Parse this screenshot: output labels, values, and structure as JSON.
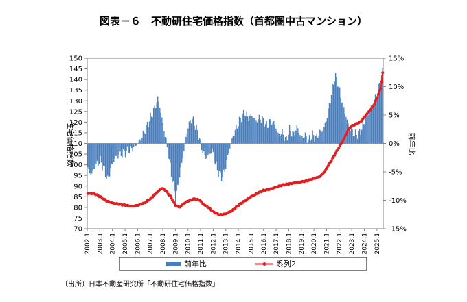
{
  "chart_data": {
    "type": "bar+line",
    "title": "図表－６　不動研住宅価格指数（首都圏中古マンション）",
    "ylabel_left": "住宅価格指数",
    "ylabel_right": "前年比",
    "left_axis": {
      "min": 70,
      "max": 150,
      "step": 5,
      "ticks": [
        "70",
        "75",
        "80",
        "85",
        "90",
        "95",
        "100",
        "105",
        "110",
        "115",
        "120",
        "125",
        "130",
        "135",
        "140",
        "145",
        "150"
      ]
    },
    "right_axis": {
      "min": -15,
      "max": 15,
      "step": 5,
      "ticks": [
        "-15%",
        "-10%",
        "-5%",
        "0%",
        "5%",
        "10%",
        "15%"
      ]
    },
    "x_start": "2002.1",
    "x_end": "2025.6",
    "x_ticks": [
      "2002.1",
      "2003.1",
      "2004.1",
      "2005.1",
      "2006.1",
      "2007.1",
      "2008.1",
      "2009.1",
      "2010.1",
      "2011.1",
      "2012.1",
      "2013.1",
      "2014.1",
      "2015.1",
      "2016.1",
      "2017.1",
      "2018.1",
      "2019.1",
      "2020.1",
      "2021.1",
      "2022.1",
      "2023.1",
      "2024.1",
      "2025.1"
    ],
    "series": [
      {
        "name": "前年比",
        "type": "bar",
        "axis": "right",
        "color": "#4a7ebb",
        "unit": "%",
        "anchors": [
          [
            2002.0,
            -4.5
          ],
          [
            2002.3,
            -5.5
          ],
          [
            2002.6,
            -4.0
          ],
          [
            2003.0,
            -3.0
          ],
          [
            2003.3,
            -4.5
          ],
          [
            2003.6,
            -6.5
          ],
          [
            2003.9,
            -4.0
          ],
          [
            2004.2,
            -2.5
          ],
          [
            2004.6,
            -2.0
          ],
          [
            2005.0,
            -1.5
          ],
          [
            2005.5,
            -1.0
          ],
          [
            2006.0,
            0.0
          ],
          [
            2006.3,
            1.0
          ],
          [
            2006.6,
            2.5
          ],
          [
            2007.0,
            4.5
          ],
          [
            2007.3,
            6.0
          ],
          [
            2007.6,
            8.0
          ],
          [
            2007.75,
            6.5
          ],
          [
            2007.95,
            4.0
          ],
          [
            2008.2,
            1.0
          ],
          [
            2008.5,
            -3.0
          ],
          [
            2008.8,
            -7.0
          ],
          [
            2009.0,
            -9.5
          ],
          [
            2009.2,
            -7.5
          ],
          [
            2009.5,
            -3.5
          ],
          [
            2009.8,
            0.5
          ],
          [
            2010.0,
            3.0
          ],
          [
            2010.3,
            4.5
          ],
          [
            2010.6,
            3.0
          ],
          [
            2010.9,
            1.0
          ],
          [
            2011.1,
            -1.0
          ],
          [
            2011.4,
            -2.5
          ],
          [
            2011.7,
            -2.0
          ],
          [
            2011.9,
            -1.0
          ],
          [
            2012.1,
            -3.0
          ],
          [
            2012.4,
            -5.0
          ],
          [
            2012.7,
            -6.0
          ],
          [
            2012.9,
            -5.0
          ],
          [
            2013.1,
            -3.0
          ],
          [
            2013.3,
            -1.0
          ],
          [
            2013.6,
            1.5
          ],
          [
            2013.9,
            3.0
          ],
          [
            2014.2,
            4.5
          ],
          [
            2014.5,
            5.5
          ],
          [
            2014.8,
            4.5
          ],
          [
            2015.1,
            5.0
          ],
          [
            2015.4,
            4.0
          ],
          [
            2015.7,
            4.5
          ],
          [
            2016.0,
            4.0
          ],
          [
            2016.3,
            3.0
          ],
          [
            2016.6,
            4.0
          ],
          [
            2016.9,
            3.5
          ],
          [
            2017.2,
            1.5
          ],
          [
            2017.5,
            2.0
          ],
          [
            2017.8,
            0.5
          ],
          [
            2018.1,
            2.5
          ],
          [
            2018.4,
            1.5
          ],
          [
            2018.7,
            3.0
          ],
          [
            2019.0,
            1.0
          ],
          [
            2019.3,
            1.5
          ],
          [
            2019.6,
            0.5
          ],
          [
            2019.9,
            1.5
          ],
          [
            2020.2,
            1.0
          ],
          [
            2020.5,
            2.0
          ],
          [
            2020.8,
            2.5
          ],
          [
            2021.1,
            5.0
          ],
          [
            2021.4,
            8.5
          ],
          [
            2021.7,
            12.0
          ],
          [
            2021.9,
            11.0
          ],
          [
            2022.2,
            8.0
          ],
          [
            2022.5,
            5.5
          ],
          [
            2022.8,
            3.0
          ],
          [
            2023.1,
            2.0
          ],
          [
            2023.4,
            1.5
          ],
          [
            2023.7,
            2.0
          ],
          [
            2024.0,
            3.5
          ],
          [
            2024.3,
            5.0
          ],
          [
            2024.6,
            6.5
          ],
          [
            2024.9,
            8.0
          ],
          [
            2025.2,
            10.0
          ],
          [
            2025.5,
            12.5
          ]
        ]
      },
      {
        "name": "系列2",
        "type": "line",
        "axis": "left",
        "color": "#e41e1e",
        "unit": "index",
        "anchors": [
          [
            2002.0,
            86.5
          ],
          [
            2002.5,
            86.5
          ],
          [
            2003.0,
            85.0
          ],
          [
            2003.5,
            83.0
          ],
          [
            2004.0,
            82.0
          ],
          [
            2004.5,
            81.5
          ],
          [
            2005.0,
            81.0
          ],
          [
            2005.5,
            80.5
          ],
          [
            2006.0,
            81.0
          ],
          [
            2006.5,
            82.0
          ],
          [
            2007.0,
            84.0
          ],
          [
            2007.5,
            87.0
          ],
          [
            2007.9,
            89.0
          ],
          [
            2008.2,
            88.0
          ],
          [
            2008.6,
            85.0
          ],
          [
            2009.0,
            81.0
          ],
          [
            2009.3,
            80.0
          ],
          [
            2009.7,
            82.0
          ],
          [
            2010.0,
            83.0
          ],
          [
            2010.5,
            84.0
          ],
          [
            2010.9,
            83.5
          ],
          [
            2011.2,
            81.5
          ],
          [
            2011.6,
            80.0
          ],
          [
            2012.0,
            78.0
          ],
          [
            2012.5,
            76.5
          ],
          [
            2013.0,
            77.0
          ],
          [
            2013.5,
            78.5
          ],
          [
            2014.0,
            81.0
          ],
          [
            2014.5,
            83.0
          ],
          [
            2015.0,
            85.0
          ],
          [
            2015.5,
            86.5
          ],
          [
            2016.0,
            88.0
          ],
          [
            2016.5,
            88.5
          ],
          [
            2017.0,
            89.5
          ],
          [
            2017.5,
            90.5
          ],
          [
            2018.0,
            91.0
          ],
          [
            2018.5,
            91.5
          ],
          [
            2019.0,
            92.0
          ],
          [
            2019.5,
            92.5
          ],
          [
            2020.0,
            93.5
          ],
          [
            2020.5,
            94.5
          ],
          [
            2020.9,
            97.0
          ],
          [
            2021.3,
            101.0
          ],
          [
            2021.6,
            104.0
          ],
          [
            2022.0,
            108.0
          ],
          [
            2022.4,
            112.0
          ],
          [
            2022.8,
            117.0
          ],
          [
            2023.0,
            118.0
          ],
          [
            2023.3,
            119.0
          ],
          [
            2023.7,
            120.0
          ],
          [
            2024.0,
            122.0
          ],
          [
            2024.4,
            125.0
          ],
          [
            2024.8,
            128.0
          ],
          [
            2025.1,
            132.0
          ],
          [
            2025.35,
            136.0
          ],
          [
            2025.5,
            143.0
          ]
        ]
      }
    ],
    "legend": [
      "前年比",
      "系列2"
    ],
    "legend_position": "bottom",
    "source": "〔出所〕日本不動産研究所「不動研住宅価格指数」"
  }
}
